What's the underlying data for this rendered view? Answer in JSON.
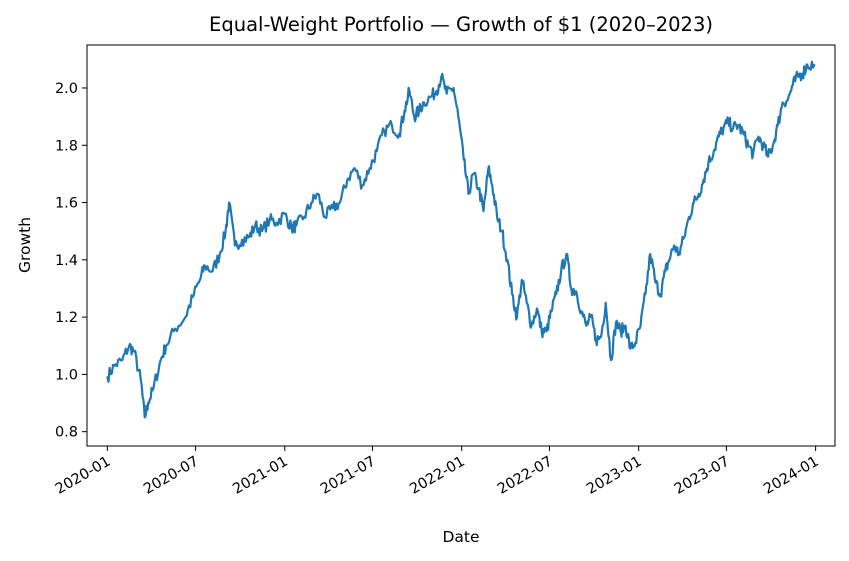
{
  "chart_data": {
    "type": "line",
    "title": "Equal-Weight Portfolio — Growth of $1 (2020–2023)",
    "xlabel": "Date",
    "ylabel": "Growth",
    "xlim": [
      "2019-11-20",
      "2024-02-10"
    ],
    "ylim": [
      0.75,
      2.15
    ],
    "yticks": [
      0.8,
      1.0,
      1.2,
      1.4,
      1.6,
      1.8,
      2.0
    ],
    "xticks": [
      "2020-01",
      "2020-07",
      "2021-01",
      "2021-07",
      "2022-01",
      "2022-07",
      "2023-01",
      "2023-07",
      "2024-01"
    ],
    "grid": false,
    "legend": "none",
    "colors": {
      "line": "#1f77b4"
    },
    "series": [
      {
        "x": [
          "2020-01-01",
          "2020-01-15",
          "2020-02-01",
          "2020-02-15",
          "2020-02-25",
          "2020-03-10",
          "2020-03-18",
          "2020-03-25",
          "2020-04-05",
          "2020-04-20",
          "2020-05-01",
          "2020-05-20",
          "2020-06-10",
          "2020-06-25",
          "2020-07-10",
          "2020-07-20",
          "2020-08-05",
          "2020-08-20",
          "2020-09-01",
          "2020-09-08",
          "2020-09-20",
          "2020-10-05",
          "2020-10-20",
          "2020-11-01",
          "2020-11-15",
          "2020-12-01",
          "2020-12-15",
          "2021-01-01",
          "2021-01-15",
          "2021-01-25",
          "2021-02-10",
          "2021-02-25",
          "2021-03-10",
          "2021-03-25",
          "2021-04-10",
          "2021-04-25",
          "2021-05-10",
          "2021-05-25",
          "2021-06-10",
          "2021-06-25",
          "2021-07-10",
          "2021-07-25",
          "2021-08-10",
          "2021-08-25",
          "2021-09-05",
          "2021-09-15",
          "2021-09-25",
          "2021-10-05",
          "2021-10-15",
          "2021-10-30",
          "2021-11-10",
          "2021-11-20",
          "2021-12-01",
          "2021-12-15",
          "2021-12-25",
          "2022-01-05",
          "2022-01-15",
          "2022-01-25",
          "2022-02-05",
          "2022-02-15",
          "2022-02-25",
          "2022-03-05",
          "2022-03-15",
          "2022-03-25",
          "2022-04-05",
          "2022-04-15",
          "2022-04-25",
          "2022-05-05",
          "2022-05-15",
          "2022-05-25",
          "2022-06-05",
          "2022-06-15",
          "2022-06-25",
          "2022-07-05",
          "2022-07-15",
          "2022-07-25",
          "2022-08-05",
          "2022-08-15",
          "2022-08-25",
          "2022-09-05",
          "2022-09-15",
          "2022-09-25",
          "2022-10-05",
          "2022-10-15",
          "2022-10-25",
          "2022-11-05",
          "2022-11-15",
          "2022-11-25",
          "2022-12-05",
          "2022-12-15",
          "2022-12-25",
          "2023-01-05",
          "2023-01-15",
          "2023-01-25",
          "2023-02-05",
          "2023-02-15",
          "2023-02-25",
          "2023-03-05",
          "2023-03-15",
          "2023-03-25",
          "2023-04-05",
          "2023-04-15",
          "2023-04-25",
          "2023-05-05",
          "2023-05-15",
          "2023-05-25",
          "2023-06-05",
          "2023-06-15",
          "2023-06-25",
          "2023-07-05",
          "2023-07-15",
          "2023-07-25",
          "2023-08-05",
          "2023-08-15",
          "2023-08-25",
          "2023-09-05",
          "2023-09-15",
          "2023-09-25",
          "2023-10-05",
          "2023-10-15",
          "2023-10-25",
          "2023-11-05",
          "2023-11-15",
          "2023-11-25",
          "2023-12-05",
          "2023-12-15",
          "2023-12-29"
        ],
        "values": [
          0.99,
          1.03,
          1.05,
          1.1,
          1.08,
          0.98,
          0.85,
          0.9,
          0.95,
          1.05,
          1.1,
          1.16,
          1.2,
          1.27,
          1.33,
          1.38,
          1.36,
          1.42,
          1.5,
          1.6,
          1.45,
          1.47,
          1.48,
          1.52,
          1.5,
          1.54,
          1.53,
          1.56,
          1.51,
          1.52,
          1.55,
          1.6,
          1.63,
          1.55,
          1.58,
          1.6,
          1.68,
          1.72,
          1.66,
          1.72,
          1.78,
          1.85,
          1.87,
          1.84,
          1.92,
          1.99,
          1.9,
          1.92,
          1.95,
          1.97,
          1.99,
          2.04,
          1.98,
          2.0,
          1.9,
          1.75,
          1.63,
          1.7,
          1.65,
          1.57,
          1.72,
          1.66,
          1.55,
          1.5,
          1.4,
          1.28,
          1.2,
          1.33,
          1.25,
          1.17,
          1.23,
          1.15,
          1.15,
          1.22,
          1.28,
          1.36,
          1.42,
          1.3,
          1.29,
          1.22,
          1.17,
          1.2,
          1.12,
          1.13,
          1.25,
          1.05,
          1.18,
          1.15,
          1.17,
          1.09,
          1.11,
          1.17,
          1.28,
          1.42,
          1.32,
          1.28,
          1.36,
          1.4,
          1.45,
          1.42,
          1.48,
          1.55,
          1.6,
          1.63,
          1.68,
          1.74,
          1.78,
          1.83,
          1.86,
          1.88,
          1.86,
          1.87,
          1.84,
          1.8,
          1.77,
          1.83,
          1.8,
          1.76,
          1.8,
          1.87,
          1.95,
          1.96,
          2.01,
          2.04,
          2.05,
          2.08,
          2.08
        ]
      }
    ]
  }
}
